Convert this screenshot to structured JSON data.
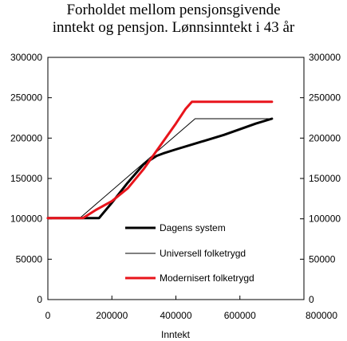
{
  "chart_data": {
    "type": "line",
    "title_line1": "Forholdet mellom pensjonsgivende",
    "title_line2": "inntekt og pensjon. Lønnsinntekt i 43 år",
    "xlabel": "Inntekt",
    "ylabel": "",
    "xlim": [
      0,
      800000
    ],
    "ylim": [
      0,
      300000
    ],
    "x_ticks": [
      0,
      200000,
      400000,
      600000,
      800000
    ],
    "y_ticks": [
      0,
      50000,
      100000,
      150000,
      200000,
      250000,
      300000
    ],
    "x_tick_labels": [
      "0",
      "200000",
      "400000",
      "600000",
      "800000"
    ],
    "y_tick_labels": [
      "0",
      "50000",
      "100000",
      "150000",
      "200000",
      "250000",
      "300000"
    ],
    "secondary_y_axis": true,
    "grid": false,
    "legend_position": "bottom-right",
    "series": [
      {
        "name": "Dagens system",
        "color": "#000000",
        "style": "thick",
        "x": [
          0,
          100000,
          160000,
          200000,
          250000,
          300000,
          340000,
          360000,
          400000,
          450000,
          500000,
          550000,
          600000,
          650000,
          700000
        ],
        "y": [
          101000,
          101000,
          101000,
          120000,
          145000,
          168000,
          178000,
          181000,
          186000,
          192000,
          198000,
          204000,
          211000,
          218000,
          224000
        ]
      },
      {
        "name": "Universell folketrygd",
        "color": "#000000",
        "style": "thin",
        "x": [
          0,
          100000,
          460000,
          700000
        ],
        "y": [
          101000,
          101000,
          224000,
          224000
        ]
      },
      {
        "name": "Modernisert folketrygd",
        "color": "#e8141b",
        "style": "thick",
        "x": [
          0,
          110000,
          150000,
          200000,
          250000,
          300000,
          350000,
          400000,
          430000,
          450000,
          700000
        ],
        "y": [
          101000,
          101000,
          111000,
          122000,
          138000,
          162000,
          190000,
          218000,
          236000,
          245000,
          245000
        ]
      }
    ]
  }
}
